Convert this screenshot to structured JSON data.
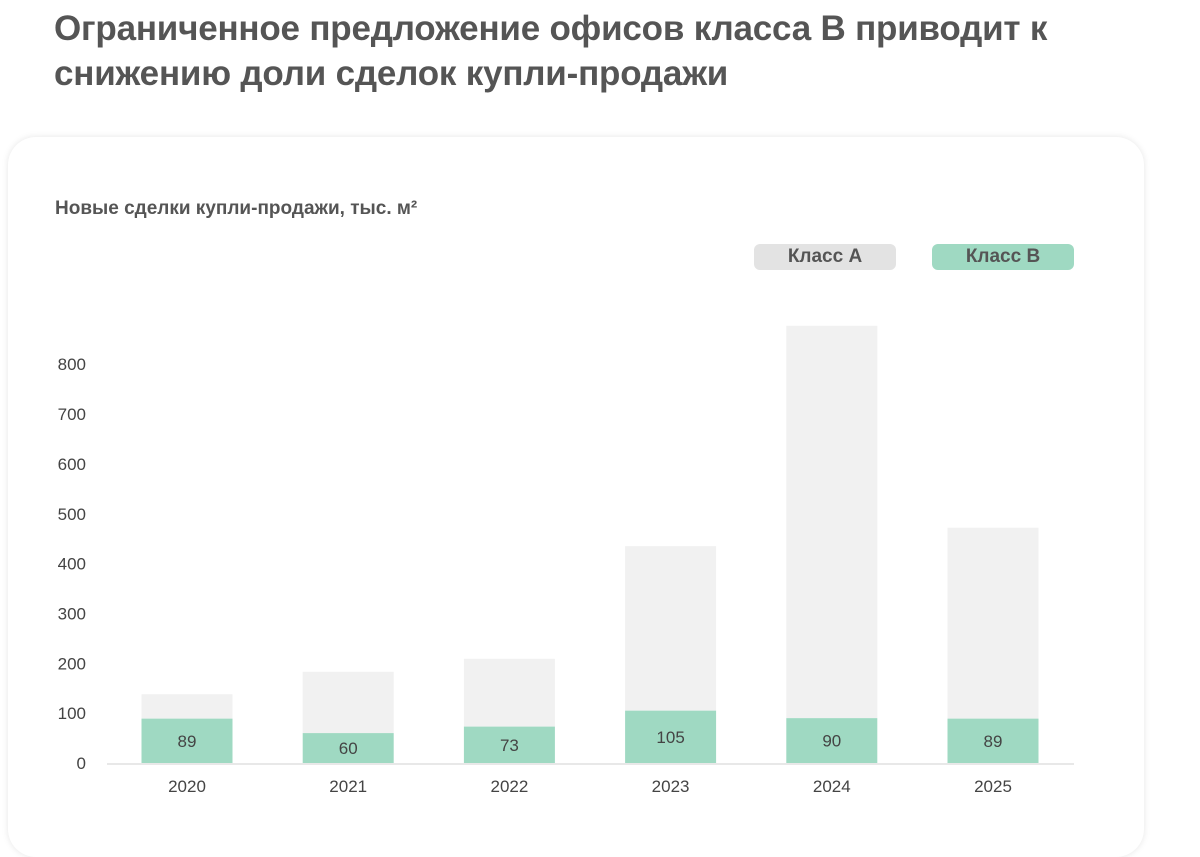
{
  "page": {
    "title": "Ограниченное предложение офисов класса В приводит к снижению доли сделок купли-продажи"
  },
  "colors": {
    "class_a": "#f1f1f1",
    "class_b": "#9fd9c2",
    "text": "#555555",
    "axis": "#d0d0d0"
  },
  "chart_data": {
    "type": "bar",
    "stacked": true,
    "title": "Новые сделки купли-продажи, тыс. м²",
    "xlabel": "",
    "ylabel": "",
    "categories": [
      "2020",
      "2021",
      "2022",
      "2023",
      "2024",
      "2025"
    ],
    "series": [
      {
        "name": "Класс В",
        "values": [
          89,
          60,
          73,
          105,
          90,
          89
        ],
        "labels": [
          "89",
          "60",
          "73",
          "105",
          "90",
          "89"
        ]
      },
      {
        "name": "Класс А",
        "values": [
          49,
          123,
          136,
          330,
          787,
          383
        ]
      }
    ],
    "totals": [
      138,
      183,
      209,
      435,
      877,
      472
    ],
    "ylim": [
      0,
      880
    ],
    "yticks": [
      "0",
      "100",
      "200",
      "300",
      "400",
      "500",
      "600",
      "700",
      "800"
    ],
    "grid": false,
    "legend_position": "top-right",
    "legend": [
      "Класс А",
      "Класс В"
    ]
  }
}
